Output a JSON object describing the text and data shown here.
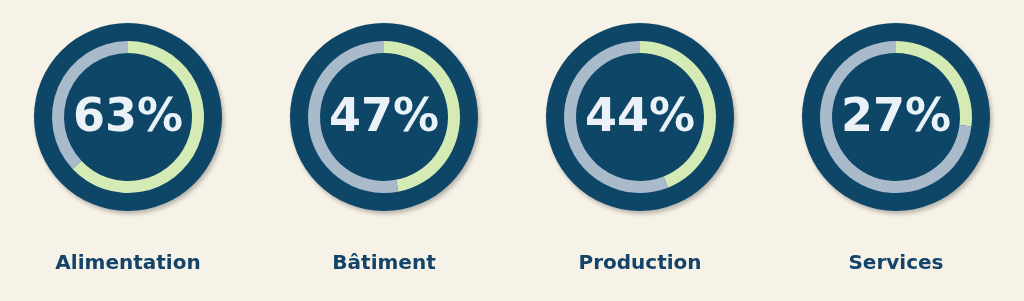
{
  "chart_data": [
    {
      "type": "donut",
      "title": "Alimentation",
      "categories": [
        null,
        null
      ],
      "values": [
        63,
        37
      ],
      "colors": [
        "#d5ebb5",
        "#a9bacb"
      ],
      "value_labels": [
        "63%",
        null
      ],
      "legend": false
    },
    {
      "type": "donut",
      "title": "Bâtiment",
      "categories": [
        null,
        null
      ],
      "values": [
        47,
        53
      ],
      "colors": [
        "#d5ebb5",
        "#a9bacb"
      ],
      "value_labels": [
        "47%",
        null
      ],
      "legend": false
    },
    {
      "type": "donut",
      "title": "Production",
      "categories": [
        null,
        null
      ],
      "values": [
        44,
        56
      ],
      "colors": [
        "#d5ebb5",
        "#a9bacb"
      ],
      "value_labels": [
        "44%",
        null
      ],
      "legend": false
    },
    {
      "type": "donut",
      "title": "Services",
      "categories": [
        null,
        null
      ],
      "values": [
        27,
        73
      ],
      "colors": [
        "#d5ebb5",
        "#a9bacb"
      ],
      "value_labels": [
        "27%",
        null
      ],
      "legend": false
    }
  ]
}
